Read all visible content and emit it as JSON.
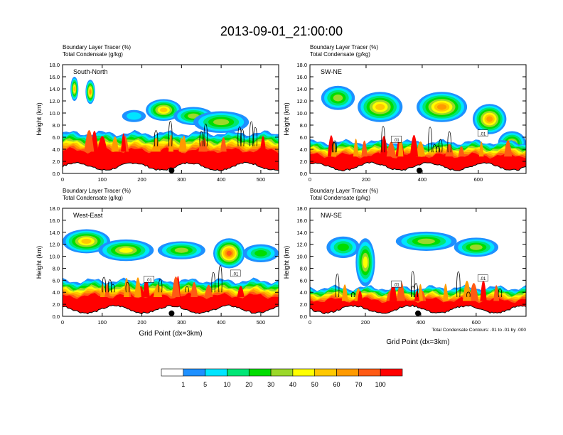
{
  "title": "2013-09-01_21:00:00",
  "colors": {
    "levels": [
      "#ffffff",
      "#1e90ff",
      "#00e5ff",
      "#00e676",
      "#00dd00",
      "#9bd82a",
      "#ffff00",
      "#ffc800",
      "#ff9a00",
      "#ff5a14",
      "#ff0000"
    ],
    "contour": "#000000",
    "axis": "#000000"
  },
  "chart_data": [
    {
      "type": "heatmap",
      "panel_title": "South-North",
      "left_label_1": "Boundary Layer Tracer",
      "right_label_1": "(%)",
      "left_label_2": "Total Condensate",
      "right_label_2": "(g/kg)",
      "ylabel": "Height (km)",
      "xlabel": "",
      "xlim": [
        0,
        545
      ],
      "ylim": [
        0,
        18
      ],
      "xticks": [
        "0",
        "100",
        "200",
        "300",
        "400",
        "500"
      ],
      "yticks": [
        "0.0",
        "2.0",
        "4.0",
        "6.0",
        "8.0",
        "10.0",
        "12.0",
        "14.0",
        "16.0",
        "18.0"
      ],
      "marker_x": 275,
      "contour_labels": [],
      "pbl_top_km": 4.5,
      "upper_clouds": [
        {
          "x": 30,
          "z": 14.0,
          "rx": 10,
          "rz": 2.0,
          "peak": 7
        },
        {
          "x": 70,
          "z": 13.5,
          "rx": 12,
          "rz": 2.0,
          "peak": 8
        },
        {
          "x": 255,
          "z": 10.5,
          "rx": 45,
          "rz": 1.8,
          "peak": 7
        },
        {
          "x": 330,
          "z": 9.5,
          "rx": 50,
          "rz": 1.5,
          "peak": 5
        },
        {
          "x": 400,
          "z": 8.5,
          "rx": 70,
          "rz": 1.8,
          "peak": 5
        },
        {
          "x": 180,
          "z": 9.5,
          "rx": 30,
          "rz": 1.0,
          "peak": 2
        }
      ]
    },
    {
      "type": "heatmap",
      "panel_title": "SW-NE",
      "left_label_1": "Boundary Layer Tracer",
      "right_label_1": "(%)",
      "left_label_2": "Total Condensate",
      "right_label_2": "(g/kg)",
      "ylabel": "Height (km)",
      "xlabel": "",
      "xlim": [
        0,
        770
      ],
      "ylim": [
        0,
        18
      ],
      "xticks": [
        "0",
        "200",
        "400",
        "600"
      ],
      "yticks": [
        "0.0",
        "2.0",
        "4.0",
        "6.0",
        "8.0",
        "10.0",
        "12.0",
        "14.0",
        "16.0",
        "18.0"
      ],
      "marker_x": 390,
      "contour_labels": [
        ".01",
        ".01"
      ],
      "pbl_top_km": 3.5,
      "upper_clouds": [
        {
          "x": 100,
          "z": 12.5,
          "rx": 60,
          "rz": 2.0,
          "peak": 5
        },
        {
          "x": 250,
          "z": 11.0,
          "rx": 80,
          "rz": 2.5,
          "peak": 7
        },
        {
          "x": 470,
          "z": 11.0,
          "rx": 90,
          "rz": 2.5,
          "peak": 8
        },
        {
          "x": 640,
          "z": 9.0,
          "rx": 60,
          "rz": 2.5,
          "peak": 8
        },
        {
          "x": 720,
          "z": 5.0,
          "rx": 50,
          "rz": 2.0,
          "peak": 6
        }
      ]
    },
    {
      "type": "heatmap",
      "panel_title": "West-East",
      "left_label_1": "Boundary Layer Tracer",
      "right_label_1": "(%)",
      "left_label_2": "Total Condensate",
      "right_label_2": "(g/kg)",
      "ylabel": "Height (km)",
      "xlabel": "Grid Point (dx=3km)",
      "xlim": [
        0,
        545
      ],
      "ylim": [
        0,
        18
      ],
      "xticks": [
        "0",
        "100",
        "200",
        "300",
        "400",
        "500"
      ],
      "yticks": [
        "0.0",
        "2.0",
        "4.0",
        "6.0",
        "8.0",
        "10.0",
        "12.0",
        "14.0",
        "16.0",
        "18.0"
      ],
      "marker_x": 275,
      "contour_labels": [
        ".01",
        ".01"
      ],
      "pbl_top_km": 4.0,
      "upper_clouds": [
        {
          "x": 60,
          "z": 12.5,
          "rx": 60,
          "rz": 2.0,
          "peak": 7
        },
        {
          "x": 160,
          "z": 11.0,
          "rx": 70,
          "rz": 1.8,
          "peak": 6
        },
        {
          "x": 300,
          "z": 11.0,
          "rx": 60,
          "rz": 1.5,
          "peak": 5
        },
        {
          "x": 420,
          "z": 10.5,
          "rx": 40,
          "rz": 2.5,
          "peak": 9
        },
        {
          "x": 500,
          "z": 10.5,
          "rx": 45,
          "rz": 1.5,
          "peak": 4
        }
      ]
    },
    {
      "type": "heatmap",
      "panel_title": "NW-SE",
      "left_label_1": "Boundary Layer Tracer",
      "right_label_1": "(%)",
      "left_label_2": "Total Condensate",
      "right_label_2": "(g/kg)",
      "ylabel": "Height (km)",
      "xlabel": "Grid Point (dx=3km)",
      "xlim": [
        0,
        780
      ],
      "ylim": [
        0,
        18
      ],
      "xticks": [
        "0",
        "200",
        "400",
        "600"
      ],
      "yticks": [
        "0.0",
        "2.0",
        "4.0",
        "6.0",
        "8.0",
        "10.0",
        "12.0",
        "14.0",
        "16.0",
        "18.0"
      ],
      "marker_x": 390,
      "contour_labels": [
        ".01",
        ".01"
      ],
      "footnote": "Total Condensate Contours: .01 to .01 by .000",
      "pbl_top_km": 3.2,
      "upper_clouds": [
        {
          "x": 120,
          "z": 11.5,
          "rx": 60,
          "rz": 1.8,
          "peak": 4
        },
        {
          "x": 200,
          "z": 9.0,
          "rx": 35,
          "rz": 4.0,
          "peak": 6
        },
        {
          "x": 420,
          "z": 12.5,
          "rx": 110,
          "rz": 1.6,
          "peak": 5
        },
        {
          "x": 600,
          "z": 11.5,
          "rx": 80,
          "rz": 1.6,
          "peak": 5
        }
      ]
    }
  ],
  "legend": {
    "labels": [
      "1",
      "5",
      "10",
      "20",
      "30",
      "40",
      "50",
      "60",
      "70",
      "100"
    ]
  }
}
